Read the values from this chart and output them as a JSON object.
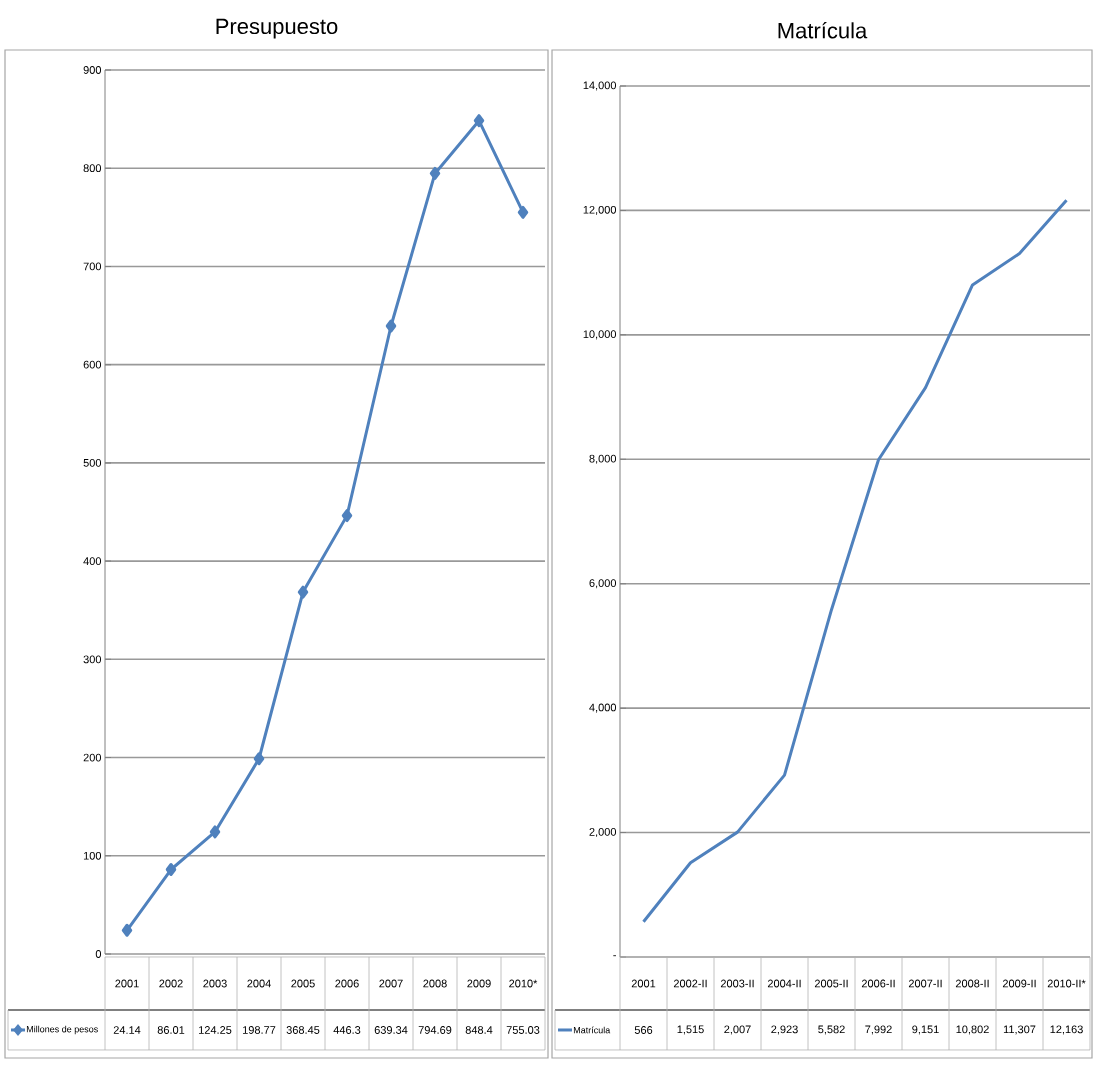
{
  "chart_data": [
    {
      "type": "line",
      "title": "Presupuesto",
      "categories": [
        "2001",
        "2002",
        "2003",
        "2004",
        "2005",
        "2006",
        "2007",
        "2008",
        "2009",
        "2010*"
      ],
      "series": [
        {
          "name": "Millones de pesos",
          "color": "#4f81bd",
          "values": [
            24.14,
            86.01,
            124.25,
            198.77,
            368.45,
            446.3,
            639.34,
            794.69,
            848.4,
            755.03
          ]
        }
      ],
      "ylim": [
        0,
        900
      ],
      "yticks": [
        0,
        100,
        200,
        300,
        400,
        500,
        600,
        700,
        800,
        900
      ],
      "grid": "y",
      "marker": "diamond",
      "legend": "bottom",
      "data_labels": true
    },
    {
      "type": "line",
      "title": "Matrícula",
      "categories": [
        "2001",
        "2002-II",
        "2003-II",
        "2004-II",
        "2005-II",
        "2006-II",
        "2007-II",
        "2008-II",
        "2009-II",
        "2010-II*"
      ],
      "series": [
        {
          "name": "Matrícula",
          "color": "#4f81bd",
          "values": [
            566,
            1515,
            2007,
            2923,
            5582,
            7992,
            9151,
            10802,
            11307,
            12163
          ],
          "value_labels": [
            "566",
            "1,515",
            "2,007",
            "2,923",
            "5,582",
            "7,992",
            "9,151",
            "10,802",
            "11,307",
            "12,163"
          ]
        }
      ],
      "ylim": [
        0,
        14000
      ],
      "yticks": [
        {
          "value": 0,
          "label": "-"
        },
        {
          "value": 2000,
          "label": "2,000"
        },
        {
          "value": 4000,
          "label": "4,000"
        },
        {
          "value": 6000,
          "label": "6,000"
        },
        {
          "value": 8000,
          "label": "8,000"
        },
        {
          "value": 10000,
          "label": "10,000"
        },
        {
          "value": 12000,
          "label": "12,000"
        },
        {
          "value": 14000,
          "label": "14,000"
        }
      ],
      "grid": "y",
      "legend": "bottom"
    }
  ]
}
